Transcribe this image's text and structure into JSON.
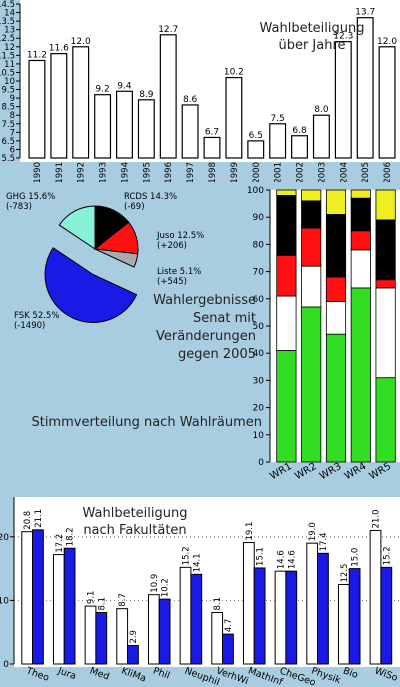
{
  "colors": {
    "page_background": "#a9cde0",
    "panel_background": "#ffffff",
    "bar_white": "#ffffff",
    "bar_blue": "#1a1ae6",
    "stroke": "#000000",
    "vote_colors": [
      "#33dd22",
      "#ffffff",
      "#ff1111",
      "#000000",
      "#eeee22"
    ]
  },
  "chart_data": [
    {
      "type": "bar",
      "title": "Wahlbeteiligung\nüber Jahre",
      "categories": [
        "1990",
        "1991",
        "1992",
        "1993",
        "1994",
        "1995",
        "1996",
        "1997",
        "1998",
        "1999",
        "2000",
        "2001",
        "2002",
        "2003",
        "2004",
        "2005",
        "2006"
      ],
      "values": [
        11.2,
        11.6,
        12.0,
        9.2,
        9.4,
        8.9,
        12.7,
        8.6,
        6.7,
        10.2,
        6.5,
        7.5,
        6.8,
        8.0,
        12.3,
        13.7,
        12.0
      ],
      "value_labels": [
        "11.2",
        "11.6",
        "12.0",
        "9.2",
        "9.4",
        "8.9",
        "12.7",
        "8.6",
        "6.7",
        "10.2",
        "6.5",
        "7.5",
        "6.8",
        "8.0",
        "12.3",
        "13.7",
        "12.0"
      ],
      "ylim": [
        5.5,
        14.5
      ],
      "yticks": [
        "5.5",
        "6",
        "6.5",
        "7",
        "7.5",
        "8",
        "8.5",
        "9",
        "9.5",
        "10",
        "10.5",
        "11",
        "11.5",
        "12",
        "12.5",
        "13",
        "13.5",
        "14",
        "14.5"
      ],
      "grid": false
    },
    {
      "type": "pie",
      "title": "Wahlergebnisse\nSenat mit\nVeränderungen\ngegen 2005",
      "slices": [
        {
          "name": "FSK",
          "value": 52.5,
          "pct_label": "52.5%",
          "change": "(-1490)",
          "color": "#1a1ae6"
        },
        {
          "name": "GHG",
          "value": 15.6,
          "pct_label": "15.6%",
          "change": "(-783)",
          "color": "#88f2d8"
        },
        {
          "name": "RCDS",
          "value": 14.3,
          "pct_label": "14.3%",
          "change": "(-69)",
          "color": "#000000"
        },
        {
          "name": "Juso",
          "value": 12.5,
          "pct_label": "12.5%",
          "change": "(+206)",
          "color": "#ff1111"
        },
        {
          "name": "Liste",
          "value": 5.1,
          "pct_label": "5.1%",
          "change": "(+545)",
          "color": "#aaaaaa"
        }
      ]
    },
    {
      "type": "bar",
      "title": "Stimmverteilung nach Wahlräumen",
      "categories": [
        "WR1",
        "WR2",
        "WR3",
        "WR4",
        "WR5"
      ],
      "stacked": true,
      "series": [
        {
          "values": [
            41,
            57,
            47,
            64,
            31
          ]
        },
        {
          "values": [
            20,
            15,
            12,
            14,
            33
          ]
        },
        {
          "values": [
            15,
            14,
            9,
            7,
            3
          ]
        },
        {
          "values": [
            22,
            10,
            23,
            12,
            22
          ]
        },
        {
          "values": [
            2,
            4,
            9,
            3,
            11
          ]
        }
      ],
      "ylim": [
        0,
        100
      ],
      "yticks": [
        "0",
        "10",
        "20",
        "30",
        "40",
        "50",
        "60",
        "70",
        "80",
        "90",
        "100"
      ],
      "grid": false
    },
    {
      "type": "bar",
      "title": "Wahlbeteiligung\nnach Fakultäten",
      "categories": [
        "Theo",
        "Jura",
        "Med",
        "KliMa",
        "Phil",
        "Neuphil",
        "VerhWi",
        "MathInf",
        "CheGeo",
        "Physik",
        "Bio",
        "WiSo"
      ],
      "series": [
        {
          "values": [
            20.8,
            17.2,
            9.1,
            8.7,
            10.9,
            15.2,
            8.1,
            19.1,
            14.6,
            19.0,
            12.5,
            21.0
          ],
          "labels": [
            "20.8",
            "17.2",
            "9.1",
            "8.7",
            "10.9",
            "15.2",
            "8.1",
            "19.1",
            "14.6",
            "19.0",
            "12.5",
            "21.0"
          ]
        },
        {
          "values": [
            21.1,
            18.2,
            8.1,
            2.9,
            10.2,
            14.1,
            4.7,
            15.1,
            14.6,
            17.4,
            15.0,
            15.2
          ],
          "labels": [
            "21.1",
            "18.2",
            "8.1",
            "2.9",
            "10.2",
            "14.1",
            "4.7",
            "15.1",
            "14.6",
            "17.4",
            "15.0",
            "15.2"
          ]
        }
      ],
      "ylim": [
        0,
        25
      ],
      "yticks": [
        "0",
        "10",
        "20"
      ],
      "grid": true
    }
  ]
}
